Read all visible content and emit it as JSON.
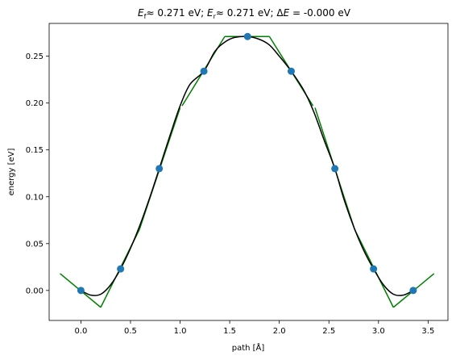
{
  "chart_data": {
    "type": "line",
    "title_parts": {
      "ef_symbol": "E",
      "ef_sub": "f",
      "ef_value": "≈  0.271 eV; ",
      "er_symbol": "E",
      "er_sub": "r",
      "er_value": "≈  0.271 eV; Δ",
      "de_symbol": "E",
      "de_value": " = -0.000 eV"
    },
    "xlabel": "path [Å]",
    "ylabel": "energy [eV]",
    "xlim": [
      -0.32,
      3.7
    ],
    "ylim": [
      -0.032,
      0.285
    ],
    "xticks": [
      0.0,
      0.5,
      1.0,
      1.5,
      2.0,
      2.5,
      3.0,
      3.5
    ],
    "xtick_labels": [
      "0.0",
      "0.5",
      "1.0",
      "1.5",
      "2.0",
      "2.5",
      "3.0",
      "3.5"
    ],
    "yticks": [
      0.0,
      0.05,
      0.1,
      0.15,
      0.2,
      0.25
    ],
    "ytick_labels": [
      "0.00",
      "0.05",
      "0.10",
      "0.15",
      "0.20",
      "0.25"
    ],
    "colors": {
      "points": "#1f77b4",
      "curve": "#000000",
      "tangents": "#008000"
    },
    "points": {
      "x": [
        0.0,
        0.4,
        0.79,
        1.24,
        1.68,
        2.12,
        2.56,
        2.95,
        3.35
      ],
      "y": [
        0.0,
        0.023,
        0.13,
        0.234,
        0.271,
        0.234,
        0.13,
        0.023,
        0.0
      ]
    },
    "tangents": [
      {
        "x": [
          -0.21,
          0.2
        ],
        "y": [
          0.018,
          -0.018
        ]
      },
      {
        "x": [
          0.2,
          0.59
        ],
        "y": [
          -0.018,
          0.065
        ]
      },
      {
        "x": [
          0.59,
          1.0
        ],
        "y": [
          0.065,
          0.195
        ]
      },
      {
        "x": [
          1.02,
          1.45
        ],
        "y": [
          0.197,
          0.271
        ]
      },
      {
        "x": [
          1.45,
          1.9
        ],
        "y": [
          0.271,
          0.271
        ]
      },
      {
        "x": [
          1.9,
          2.34
        ],
        "y": [
          0.271,
          0.197
        ]
      },
      {
        "x": [
          2.36,
          2.76
        ],
        "y": [
          0.195,
          0.065
        ]
      },
      {
        "x": [
          2.76,
          3.15
        ],
        "y": [
          0.065,
          -0.018
        ]
      },
      {
        "x": [
          3.15,
          3.56
        ],
        "y": [
          -0.018,
          0.018
        ]
      }
    ],
    "curve": {
      "x": [
        0.0,
        0.1,
        0.2,
        0.3,
        0.4,
        0.5,
        0.6,
        0.7,
        0.79,
        0.9,
        1.0,
        1.1,
        1.24,
        1.35,
        1.45,
        1.55,
        1.68,
        1.8,
        1.9,
        2.0,
        2.12,
        2.25,
        2.35,
        2.45,
        2.56,
        2.65,
        2.75,
        2.85,
        2.95,
        3.05,
        3.15,
        3.25,
        3.35
      ],
      "y": [
        0.0,
        -0.005,
        -0.004,
        0.006,
        0.023,
        0.045,
        0.071,
        0.101,
        0.13,
        0.166,
        0.197,
        0.22,
        0.234,
        0.255,
        0.265,
        0.27,
        0.271,
        0.268,
        0.262,
        0.25,
        0.234,
        0.213,
        0.19,
        0.161,
        0.13,
        0.098,
        0.068,
        0.043,
        0.023,
        0.006,
        -0.004,
        -0.005,
        0.0
      ]
    }
  }
}
